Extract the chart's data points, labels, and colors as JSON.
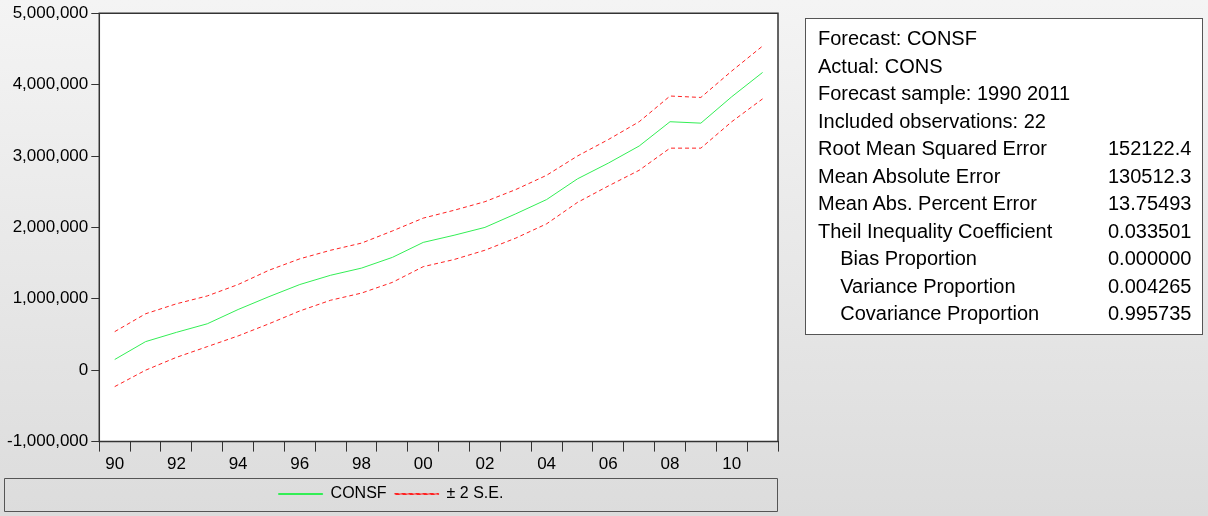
{
  "chart_data": [
    {
      "type": "line",
      "categories": [
        "90",
        null,
        "92",
        null,
        "94",
        null,
        "96",
        null,
        "98",
        null,
        "00",
        null,
        "02",
        null,
        "04",
        null,
        "06",
        null,
        "08",
        null,
        "10",
        null
      ],
      "series": [
        {
          "name": "CONSF",
          "color": "#33ee55",
          "line_style": "solid",
          "values": [
            150000,
            400000,
            530000,
            650000,
            850000,
            1030000,
            1200000,
            1330000,
            1430000,
            1580000,
            1790000,
            1890000,
            2000000,
            2190000,
            2390000,
            2680000,
            2900000,
            3140000,
            3480000,
            3460000,
            3830000,
            4170000
          ]
        },
        {
          "name": "± 2 S.E.",
          "color": "#ff2222",
          "line_style": "dashed",
          "values": [
            540000,
            790000,
            930000,
            1040000,
            1200000,
            1400000,
            1560000,
            1680000,
            1780000,
            1950000,
            2130000,
            2240000,
            2360000,
            2530000,
            2730000,
            3000000,
            3230000,
            3480000,
            3840000,
            3820000,
            4190000,
            4540000
          ]
        },
        {
          "color": "#ff2222",
          "line_style": "dashed",
          "values": [
            -230000,
            0,
            180000,
            330000,
            480000,
            650000,
            830000,
            980000,
            1080000,
            1230000,
            1450000,
            1550000,
            1680000,
            1850000,
            2050000,
            2350000,
            2580000,
            2800000,
            3110000,
            3110000,
            3480000,
            3800000
          ]
        }
      ],
      "ylim": [
        -1000000,
        5000000
      ],
      "yticks": [
        {
          "value": -1000000,
          "label": "-1,000,000"
        },
        {
          "value": 0,
          "label": "0"
        },
        {
          "value": 1000000,
          "label": "1,000,000"
        },
        {
          "value": 2000000,
          "label": "2,000,000"
        },
        {
          "value": 3000000,
          "label": "3,000,000"
        },
        {
          "value": 4000000,
          "label": "4,000,000"
        },
        {
          "value": 5000000,
          "label": "5,000,000"
        }
      ],
      "grid": false,
      "legend": "bottom",
      "marker": "none"
    },
    {
      "type": "other",
      "annotations": [
        "Forecast: CONSF",
        "Actual: CONS",
        "Forecast sample: 1990 2011",
        "Included observations: 22"
      ],
      "categories": [
        "Root Mean Squared Error",
        "Mean Absolute Error",
        "Mean Abs. Percent Error",
        "Theil Inequality Coefficient",
        "    Bias Proportion",
        "    Variance Proportion",
        "    Covariance Proportion"
      ],
      "value_labels": [
        "152122.4",
        "130512.3",
        "13.75493",
        "0.033501",
        "0.000000",
        "0.004265",
        "0.995735"
      ]
    }
  ]
}
